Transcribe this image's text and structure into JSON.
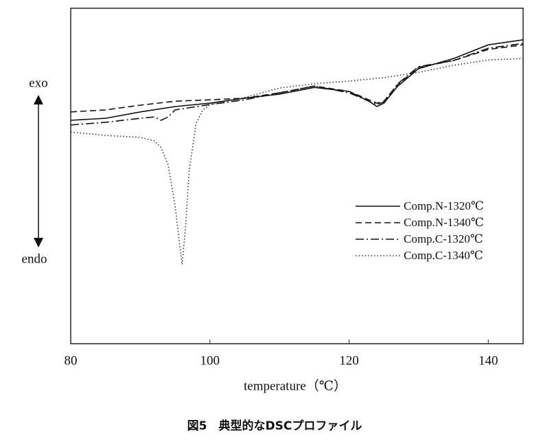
{
  "chart_data": {
    "type": "line",
    "caption": "図5　典型的なDSCプロファイル",
    "xlabel": "temperature（℃）",
    "annotations": [
      "exo",
      "endo"
    ],
    "xlim": [
      80,
      145
    ],
    "xticks": [
      80,
      100,
      120,
      140
    ],
    "ylim": [
      0,
      100
    ],
    "grid": false,
    "legend": "lower right",
    "series": [
      {
        "name": "Comp.N-1320℃",
        "color": "#111111",
        "dash": "solid",
        "x": [
          80,
          85,
          90,
          95,
          100,
          105,
          110,
          115,
          120,
          123,
          124,
          125,
          127,
          130,
          135,
          140,
          145
        ],
        "values": [
          66.6,
          67.2,
          69.1,
          70.7,
          71.7,
          73.2,
          74.4,
          76.4,
          75.2,
          72.1,
          70.7,
          71.7,
          76.8,
          82.0,
          85.0,
          89.1,
          90.6
        ]
      },
      {
        "name": "Comp.N-1340℃",
        "color": "#111111",
        "dash": "dashed",
        "x": [
          80,
          85,
          90,
          95,
          100,
          105,
          110,
          115,
          120,
          124,
          125,
          127,
          130,
          135,
          140,
          145
        ],
        "values": [
          69.1,
          69.7,
          71.1,
          72.3,
          72.7,
          73.2,
          74.8,
          76.8,
          75.2,
          71.7,
          72.3,
          77.3,
          82.4,
          84.4,
          87.7,
          89.1
        ]
      },
      {
        "name": "Comp.C-1320℃",
        "color": "#111111",
        "dash": "dashdot",
        "x": [
          80,
          85,
          90,
          92,
          93,
          94,
          95,
          100,
          105,
          110,
          115,
          120,
          124,
          125,
          127,
          130,
          135,
          140,
          145
        ],
        "values": [
          65.2,
          66.0,
          67.2,
          67.6,
          66.6,
          67.6,
          69.7,
          71.3,
          72.7,
          74.8,
          76.8,
          74.8,
          71.3,
          72.1,
          77.5,
          82.6,
          84.4,
          88.1,
          89.5
        ]
      },
      {
        "name": "Comp.C-1340℃",
        "color": "#333333",
        "dash": "dotted",
        "x": [
          80,
          85,
          90,
          92,
          93,
          94,
          95,
          96,
          96.5,
          97,
          98,
          99,
          100,
          105,
          110,
          115,
          120,
          125,
          130,
          135,
          140,
          145
        ],
        "values": [
          63.1,
          62.1,
          61.5,
          60.5,
          58.4,
          53.3,
          41.0,
          23.6,
          34.8,
          51.2,
          65.6,
          69.7,
          71.3,
          73.4,
          76.2,
          77.5,
          78.3,
          79.3,
          80.9,
          83.0,
          84.6,
          85.0
        ]
      }
    ]
  }
}
